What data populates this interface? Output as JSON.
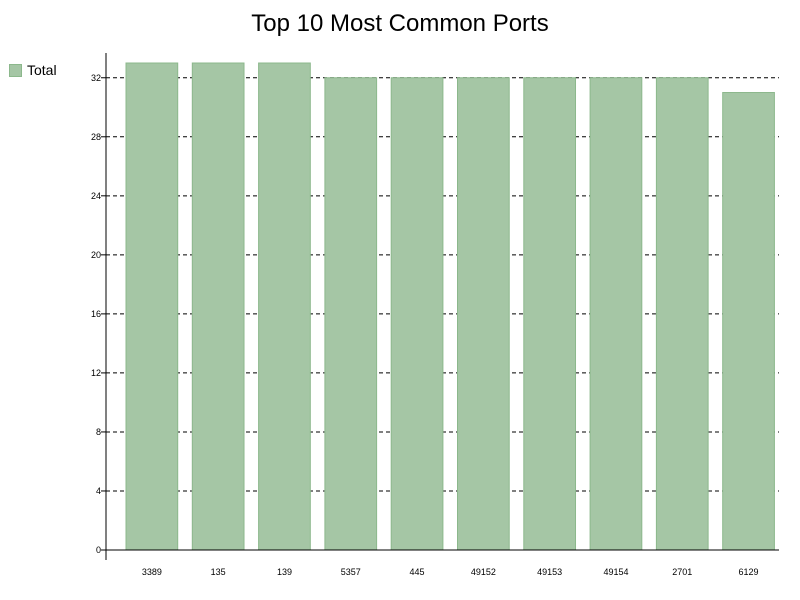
{
  "chart_data": {
    "type": "bar",
    "title": "Top 10 Most Common Ports",
    "xlabel": "",
    "ylabel": "",
    "categories": [
      "3389",
      "135",
      "139",
      "5357",
      "445",
      "49152",
      "49153",
      "49154",
      "2701",
      "6129"
    ],
    "series": [
      {
        "name": "Total",
        "values": [
          33,
          33,
          33,
          32,
          32,
          32,
          32,
          32,
          32,
          31
        ]
      }
    ],
    "ylim": [
      0,
      33
    ],
    "yticks": [
      0,
      4,
      8,
      12,
      16,
      20,
      24,
      28,
      32
    ],
    "grid": true,
    "grid_style": "dashed-horizontal",
    "legend_position": "top-left",
    "colors": {
      "bar_fill": "#a5c6a5",
      "bar_stroke": "#8cb88c",
      "axis": "#000000",
      "grid": "#000000"
    }
  }
}
